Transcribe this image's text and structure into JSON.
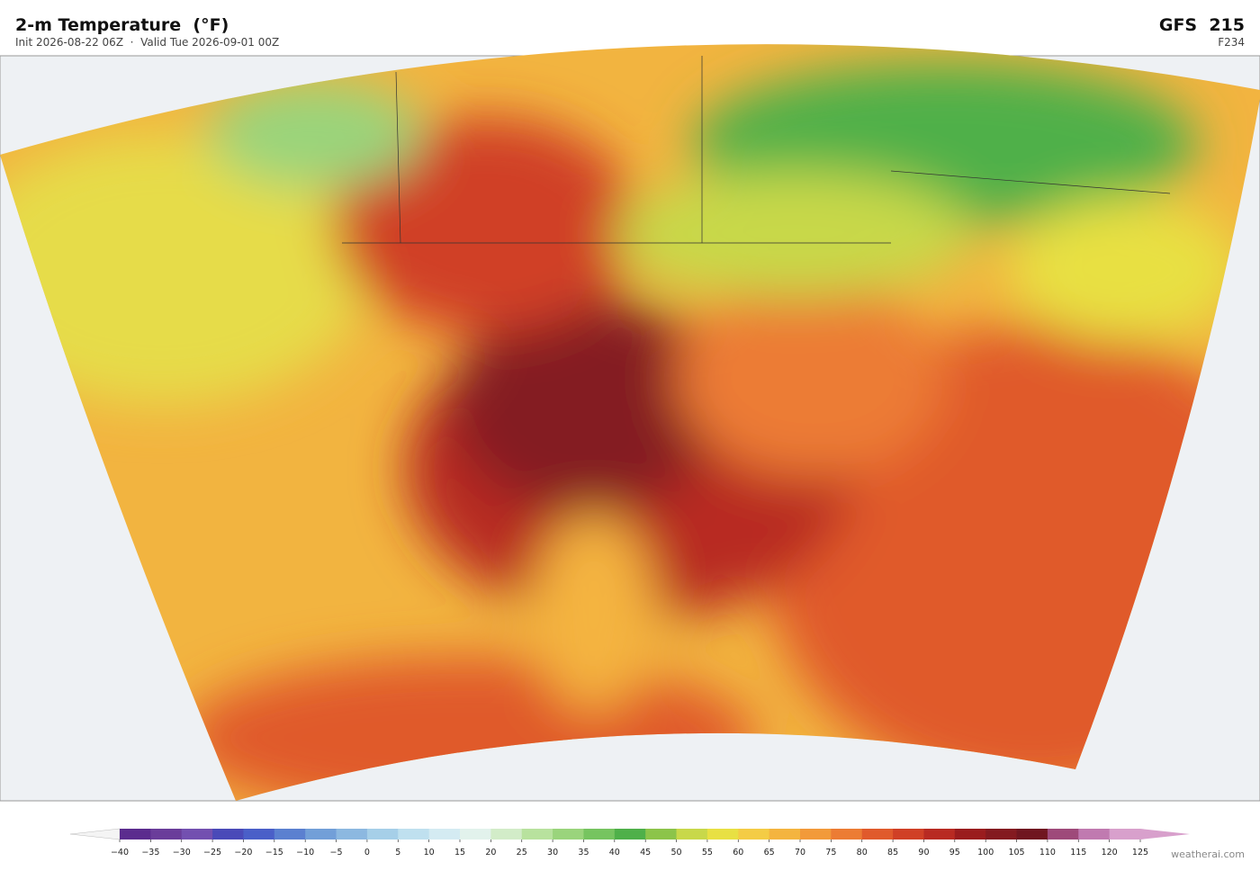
{
  "header": {
    "title": "2-m Temperature  (°F)",
    "subtitle": "Init 2026-08-22 06Z  ·  Valid Tue 2026-09-01 00Z",
    "model": "GFS  215",
    "forecast_hour": "F234"
  },
  "colorbar": {
    "ticks": [
      "−40",
      "−35",
      "−30",
      "−25",
      "−20",
      "−15",
      "−10",
      "−5",
      "0",
      "5",
      "10",
      "15",
      "20",
      "25",
      "30",
      "35",
      "40",
      "45",
      "50",
      "55",
      "60",
      "65",
      "70",
      "75",
      "80",
      "85",
      "90",
      "95",
      "100",
      "105",
      "110",
      "115",
      "120",
      "125"
    ],
    "colors": [
      "#5b2c8e",
      "#6a3d9a",
      "#7350b0",
      "#4a4ab8",
      "#4a5fc8",
      "#5b80d0",
      "#729fd8",
      "#8cb8e0",
      "#a6cfe8",
      "#bfe0ef",
      "#d4ebf2",
      "#e2f2ec",
      "#d2ecc8",
      "#b8e29e",
      "#9ad47c",
      "#76c460",
      "#4fb04a",
      "#8cc44a",
      "#c8d84a",
      "#e8e043",
      "#f4cc45",
      "#f4b43f",
      "#f29a3a",
      "#ec7c34",
      "#e05a2c",
      "#d04026",
      "#b82a22",
      "#9a1c1e",
      "#841a20",
      "#701620",
      "#9e4a7a",
      "#c07ab0",
      "#d8a0cc"
    ]
  },
  "footer": {
    "credit": "weatherai.com"
  }
}
